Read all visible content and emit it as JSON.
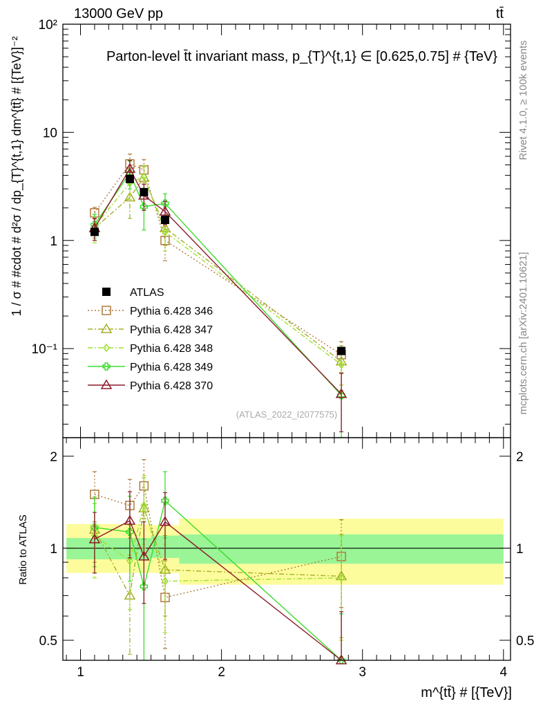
{
  "header": {
    "left": "13000 GeV pp",
    "right": "tt̄"
  },
  "side_labels": {
    "rivet": "Rivet 4.1.0, ≥ 100k events",
    "mcplots": "mcplots.cern.ch [arXiv:2401.10621]"
  },
  "chart_data": [
    {
      "type": "line",
      "panel": "main",
      "title": "Parton-level t̄t invariant mass, p_{T}^{t,1} ∈ [0.625,0.75] # {TeV}",
      "ylabel": "1 / σ # #cdot # d²σ / dp_{T}^{t,1} dm^{tt̄} # [{TeV}]⁻²",
      "yscale": "log",
      "ylim": [
        0.015,
        100
      ],
      "xlim": [
        0.875,
        4.05
      ],
      "y_tick_labels": [
        {
          "value": 0.1,
          "label": "10⁻¹"
        },
        {
          "value": 1,
          "label": "1"
        },
        {
          "value": 10,
          "label": "10"
        },
        {
          "value": 100,
          "label": "10²"
        }
      ],
      "watermark": "(ATLAS_2022_I2077575)",
      "legend_position": "lower-left",
      "series": [
        {
          "name": "ATLAS",
          "color": "#000000",
          "marker": "filled-square",
          "line": "none",
          "x": [
            1.1,
            1.35,
            1.45,
            1.6,
            2.85
          ],
          "y": [
            1.2,
            3.7,
            2.8,
            1.55,
            0.095
          ],
          "yerr": [
            0.08,
            0.2,
            0.15,
            0.1,
            0.006
          ]
        },
        {
          "name": "Pythia 6.428 346",
          "color": "#b07a3c",
          "marker": "open-square",
          "line": "dotted",
          "x": [
            1.1,
            1.35,
            1.45,
            1.6,
            2.85
          ],
          "y": [
            1.8,
            5.1,
            4.5,
            1.0,
            0.088
          ],
          "yerr": [
            0.22,
            1.2,
            1.1,
            0.35,
            0.028
          ]
        },
        {
          "name": "Pythia 6.428 347",
          "color": "#a5ae28",
          "marker": "open-triangle",
          "line": "dashdot",
          "x": [
            1.1,
            1.35,
            1.45,
            1.6,
            2.85
          ],
          "y": [
            1.3,
            2.5,
            3.8,
            1.3,
            0.076
          ],
          "yerr": [
            0.3,
            0.9,
            1.0,
            0.4,
            0.03
          ]
        },
        {
          "name": "Pythia 6.428 348",
          "color": "#9ee02e",
          "marker": "open-diamond",
          "line": "dashdot",
          "x": [
            1.1,
            1.35,
            1.45,
            1.6,
            2.85
          ],
          "y": [
            1.35,
            3.4,
            3.9,
            1.2,
            0.071
          ],
          "yerr": [
            0.4,
            1.0,
            1.0,
            0.4,
            0.03
          ]
        },
        {
          "name": "Pythia 6.428 349",
          "color": "#3adc2a",
          "marker": "open-cross",
          "line": "solid",
          "x": [
            1.1,
            1.35,
            1.45,
            1.6,
            2.85
          ],
          "y": [
            1.4,
            4.2,
            2.05,
            2.2,
            0.037
          ],
          "yerr": [
            0.35,
            1.2,
            0.8,
            0.5,
            0.022
          ]
        },
        {
          "name": "Pythia 6.428 370",
          "color": "#8c1a2a",
          "marker": "open-triangle",
          "line": "solid",
          "x": [
            1.1,
            1.35,
            1.45,
            1.6,
            2.85
          ],
          "y": [
            1.3,
            4.6,
            2.6,
            1.85,
            0.038
          ],
          "yerr": [
            0.3,
            0.9,
            0.7,
            0.45,
            0.021
          ]
        }
      ]
    },
    {
      "type": "line",
      "panel": "ratio",
      "ylabel": "Ratio to ATLAS",
      "xlabel": "m^{tt̄} # [{TeV}]",
      "yscale": "log",
      "ylim": [
        0.43,
        2.3
      ],
      "xlim": [
        0.875,
        4.05
      ],
      "x_tick_labels": [
        {
          "value": 1,
          "label": "1"
        },
        {
          "value": 2,
          "label": "2"
        },
        {
          "value": 3,
          "label": "3"
        },
        {
          "value": 4,
          "label": "4"
        }
      ],
      "y_tick_labels": [
        {
          "value": 0.5,
          "label": "0.5"
        },
        {
          "value": 1,
          "label": "1"
        },
        {
          "value": 2,
          "label": "2"
        }
      ],
      "bands": [
        {
          "x0": 0.9,
          "x1": 1.3,
          "inner": [
            0.92,
            1.08
          ],
          "outer": [
            0.83,
            1.2
          ]
        },
        {
          "x0": 1.3,
          "x1": 1.4,
          "inner": [
            0.92,
            1.08
          ],
          "outer": [
            0.83,
            1.2
          ]
        },
        {
          "x0": 1.4,
          "x1": 1.5,
          "inner": [
            0.92,
            1.08
          ],
          "outer": [
            0.83,
            1.2
          ]
        },
        {
          "x0": 1.5,
          "x1": 1.7,
          "inner": [
            0.93,
            1.1
          ],
          "outer": [
            0.83,
            1.19
          ]
        },
        {
          "x0": 1.7,
          "x1": 4.0,
          "inner": [
            0.89,
            1.11
          ],
          "outer": [
            0.76,
            1.25
          ]
        }
      ],
      "series": [
        {
          "name": "Pythia 6.428 346",
          "color": "#b07a3c",
          "marker": "open-square",
          "line": "dotted",
          "x": [
            1.1,
            1.35,
            1.45,
            1.6,
            2.85
          ],
          "y": [
            1.5,
            1.38,
            1.6,
            0.69,
            0.94
          ],
          "yerr": [
            0.28,
            0.3,
            0.35,
            0.22,
            0.3
          ]
        },
        {
          "name": "Pythia 6.428 347",
          "color": "#a5ae28",
          "marker": "open-triangle",
          "line": "dashdot",
          "x": [
            1.1,
            1.35,
            1.45,
            1.6,
            2.85
          ],
          "y": [
            1.15,
            0.7,
            1.35,
            0.85,
            0.81
          ],
          "yerr": [
            0.25,
            0.25,
            0.35,
            0.25,
            0.3
          ]
        },
        {
          "name": "Pythia 6.428 348",
          "color": "#9ee02e",
          "marker": "open-diamond",
          "line": "dashdot",
          "x": [
            1.1,
            1.35,
            1.45,
            1.6,
            2.85
          ],
          "y": [
            1.1,
            0.91,
            1.38,
            0.78,
            0.8
          ],
          "yerr": [
            0.3,
            0.28,
            0.35,
            0.25,
            0.3
          ]
        },
        {
          "name": "Pythia 6.428 349",
          "color": "#3adc2a",
          "marker": "open-cross",
          "line": "solid",
          "x": [
            1.1,
            1.35,
            1.45,
            1.6,
            2.85
          ],
          "y": [
            1.17,
            1.13,
            0.75,
            1.43,
            0.39
          ],
          "yerr": [
            0.3,
            0.35,
            0.32,
            0.35,
            0.22
          ]
        },
        {
          "name": "Pythia 6.428 370",
          "color": "#8c1a2a",
          "marker": "open-triangle",
          "line": "solid",
          "x": [
            1.1,
            1.35,
            1.45,
            1.6,
            2.85
          ],
          "y": [
            1.07,
            1.23,
            0.94,
            1.22,
            0.4
          ],
          "yerr": [
            0.24,
            0.3,
            0.28,
            0.3,
            0.22
          ]
        }
      ]
    }
  ]
}
